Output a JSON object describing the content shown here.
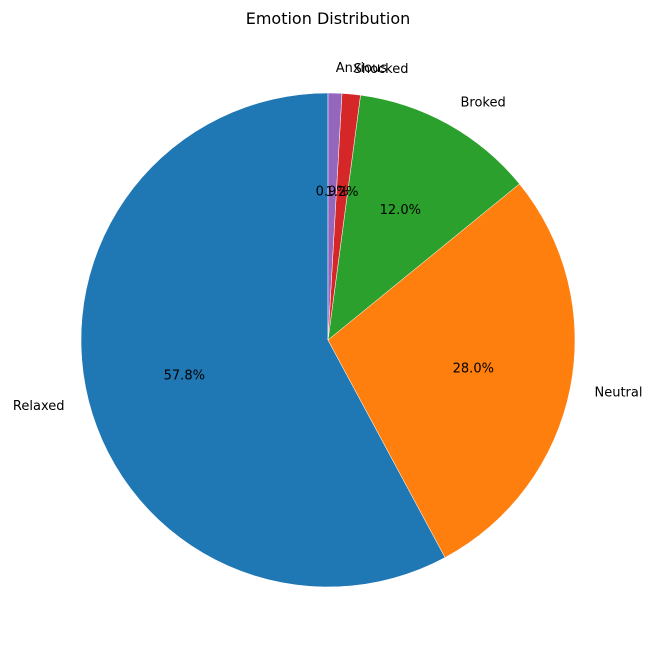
{
  "chart_data": {
    "type": "pie",
    "title": "Emotion Distribution",
    "start_angle_deg": 90,
    "direction": "counterclockwise",
    "slices": [
      {
        "label": "Relaxed",
        "value": 57.8,
        "pct_label": "57.8%",
        "color": "#1f77b4"
      },
      {
        "label": "Neutral",
        "value": 28.0,
        "pct_label": "28.0%",
        "color": "#ff7f0e"
      },
      {
        "label": "Broked",
        "value": 12.0,
        "pct_label": "12.0%",
        "color": "#2ca02c"
      },
      {
        "label": "Shocked",
        "value": 1.2,
        "pct_label": "1.2%",
        "color": "#d62728"
      },
      {
        "label": "Anxious",
        "value": 0.9,
        "pct_label": "0.9%",
        "color": "#9467bd"
      }
    ]
  }
}
